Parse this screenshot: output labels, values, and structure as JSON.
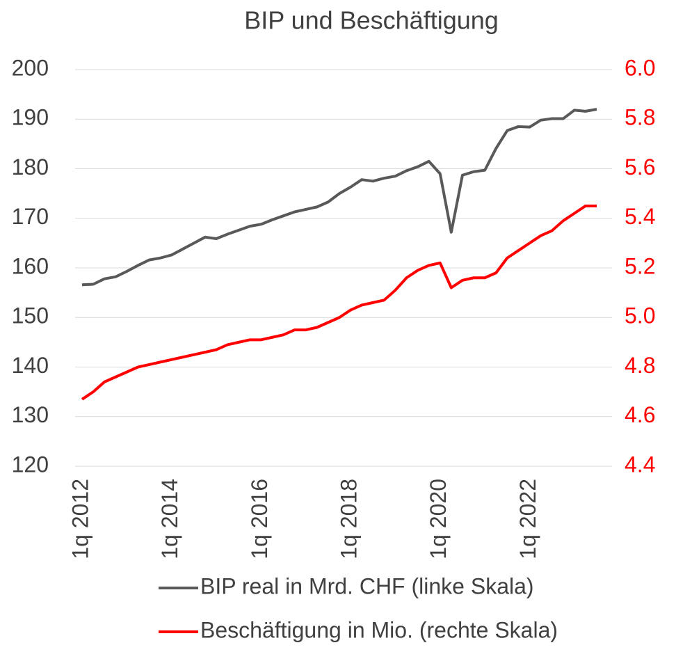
{
  "chart_data": {
    "type": "line",
    "title": "BIP und Beschäftigung",
    "categories": [
      "1q 2012",
      null,
      null,
      null,
      null,
      null,
      null,
      null,
      "1q 2014",
      null,
      null,
      null,
      null,
      null,
      null,
      null,
      "1q 2016",
      null,
      null,
      null,
      null,
      null,
      null,
      null,
      "1q 2018",
      null,
      null,
      null,
      null,
      null,
      null,
      null,
      "1q 2020",
      null,
      null,
      null,
      null,
      null,
      null,
      null,
      "1q 2022",
      null,
      null,
      null,
      null,
      null,
      null
    ],
    "series": [
      {
        "name": "BIP real in Mrd. CHF (linke Skala)",
        "color": "#595959",
        "axis": "y",
        "values": [
          156.6,
          156.7,
          157.8,
          158.2,
          159.3,
          160.5,
          161.6,
          162.0,
          162.6,
          163.8,
          165.0,
          166.2,
          165.9,
          166.8,
          167.6,
          168.4,
          168.8,
          169.7,
          170.5,
          171.3,
          171.8,
          172.3,
          173.3,
          175.0,
          176.3,
          177.8,
          177.5,
          178.1,
          178.5,
          179.6,
          180.4,
          181.5,
          179.0,
          167.2,
          178.7,
          179.4,
          179.7,
          184.1,
          187.7,
          188.5,
          188.4,
          189.8,
          190.1,
          190.1,
          191.8,
          191.6,
          192.0
        ]
      },
      {
        "name": "Beschäftigung in Mio. (rechte Skala)",
        "color": "#ff0000",
        "axis": "y2",
        "values": [
          4.67,
          4.7,
          4.74,
          4.76,
          4.78,
          4.8,
          4.81,
          4.82,
          4.83,
          4.84,
          4.85,
          4.86,
          4.87,
          4.89,
          4.9,
          4.91,
          4.91,
          4.92,
          4.93,
          4.95,
          4.95,
          4.96,
          4.98,
          5.0,
          5.03,
          5.05,
          5.06,
          5.07,
          5.11,
          5.16,
          5.19,
          5.21,
          5.22,
          5.12,
          5.15,
          5.16,
          5.16,
          5.18,
          5.24,
          5.27,
          5.3,
          5.33,
          5.35,
          5.39,
          5.42,
          5.45,
          5.45
        ]
      }
    ],
    "ylim": [
      120,
      200
    ],
    "yticks": [
      120,
      130,
      140,
      150,
      160,
      170,
      180,
      190,
      200
    ],
    "y2lim": [
      4.4,
      6.0
    ],
    "y2ticks": [
      {
        "value": 4.4,
        "label": "4.4"
      },
      {
        "value": 4.6,
        "label": "4.6"
      },
      {
        "value": 4.8,
        "label": "4.8"
      },
      {
        "value": 5.0,
        "label": "5.0"
      },
      {
        "value": 5.2,
        "label": "5.2"
      },
      {
        "value": 5.4,
        "label": "5.4"
      },
      {
        "value": 5.6,
        "label": "5.6"
      },
      {
        "value": 5.8,
        "label": "5.8"
      },
      {
        "value": 6.0,
        "label": "6.0"
      }
    ],
    "y2color": "#ff0000",
    "grid": true
  }
}
